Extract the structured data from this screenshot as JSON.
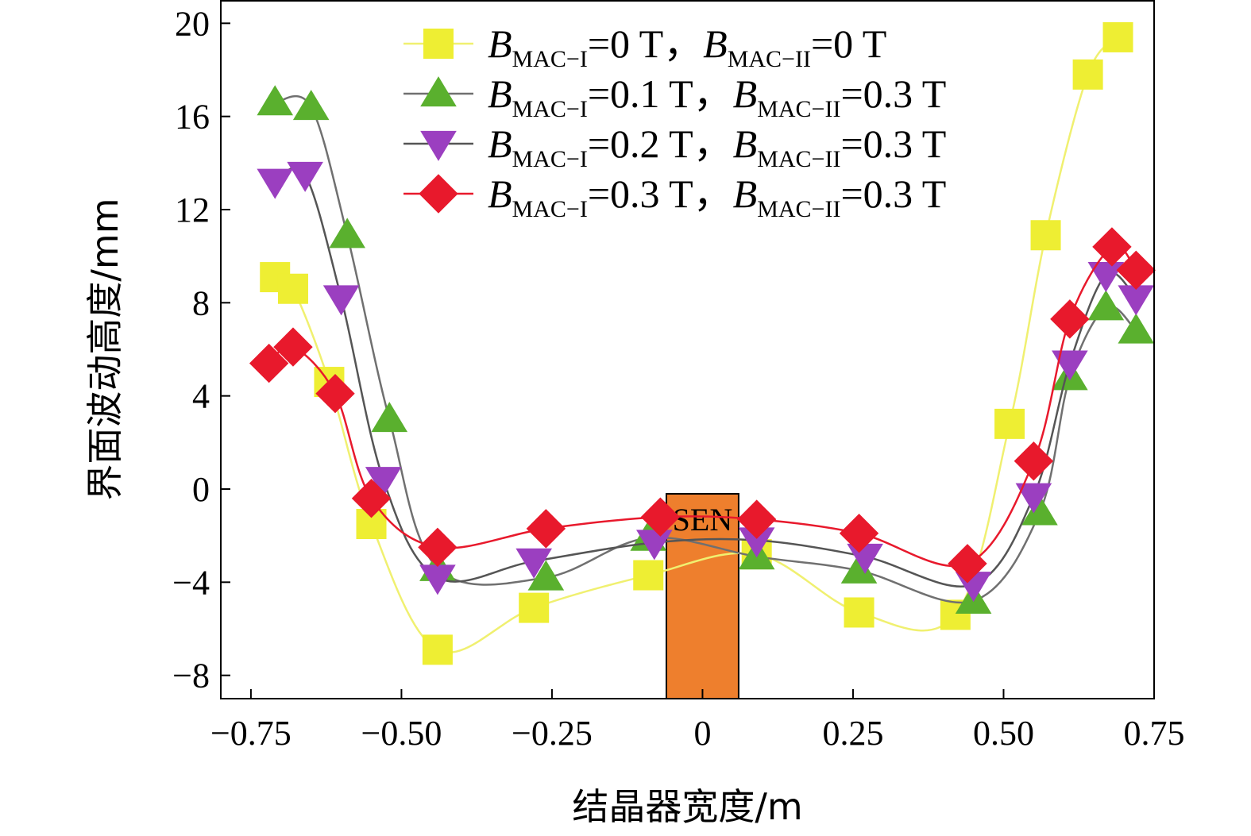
{
  "chart_data": {
    "type": "line",
    "xlabel": "结晶器宽度/m",
    "ylabel": "界面波动高度/mm",
    "xlim": [
      -0.8,
      0.75
    ],
    "ylim": [
      -9,
      21
    ],
    "xticks": [
      -0.75,
      -0.5,
      -0.25,
      0,
      0.25,
      0.5,
      0.75
    ],
    "xtick_labels": [
      "−0.75",
      "−0.50",
      "−0.25",
      "0",
      "0.25",
      "0.50",
      "0.75"
    ],
    "yticks": [
      -8,
      -4,
      0,
      4,
      8,
      12,
      16,
      20
    ],
    "ytick_labels": [
      "−8",
      "−4",
      "0",
      "4",
      "8",
      "12",
      "16",
      "20"
    ],
    "grid": false,
    "legend_position": "top-center",
    "annotation": {
      "label": "SEN",
      "x_range": [
        -0.06,
        0.06
      ],
      "color": "#ee7f2d"
    },
    "series": [
      {
        "name": "B_MAC-I=0 T, B_MAC-II=0 T",
        "legend": {
          "b1": "B",
          "s1": "MAC−I",
          "v1": "=0 T，",
          "b2": "B",
          "s2": "MAC−II",
          "v2": "=0 T"
        },
        "marker": "square",
        "color": "#eeee33",
        "line_color": "#f0f070",
        "points": [
          [
            -0.71,
            9.1
          ],
          [
            -0.68,
            8.6
          ],
          [
            -0.62,
            4.6
          ],
          [
            -0.55,
            -1.5
          ],
          [
            -0.44,
            -6.9
          ],
          [
            -0.28,
            -5.1
          ],
          [
            -0.09,
            -3.7
          ],
          [
            0.09,
            -2.8
          ],
          [
            0.26,
            -5.3
          ],
          [
            0.42,
            -5.4
          ],
          [
            0.51,
            2.8
          ],
          [
            0.57,
            10.9
          ],
          [
            0.64,
            17.8
          ],
          [
            0.69,
            19.4
          ]
        ]
      },
      {
        "name": "B_MAC-I=0.1 T, B_MAC-II=0.3 T",
        "legend": {
          "b1": "B",
          "s1": "MAC−I",
          "v1": "=0.1 T，",
          "b2": "B",
          "s2": "MAC−II",
          "v2": "=0.3 T"
        },
        "marker": "triangle-up",
        "color": "#5ab02e",
        "line_color": "#707070",
        "points": [
          [
            -0.71,
            16.6
          ],
          [
            -0.65,
            16.4
          ],
          [
            -0.59,
            10.9
          ],
          [
            -0.52,
            3.0
          ],
          [
            -0.44,
            -3.4
          ],
          [
            -0.26,
            -3.8
          ],
          [
            -0.09,
            -2.1
          ],
          [
            0.09,
            -2.9
          ],
          [
            0.26,
            -3.5
          ],
          [
            0.45,
            -4.8
          ],
          [
            0.56,
            -1.0
          ],
          [
            0.61,
            4.8
          ],
          [
            0.67,
            7.8
          ],
          [
            0.72,
            6.8
          ]
        ]
      },
      {
        "name": "B_MAC-I=0.2 T, B_MAC-II=0.3 T",
        "legend": {
          "b1": "B",
          "s1": "MAC−I",
          "v1": "=0.2 T，",
          "b2": "B",
          "s2": "MAC−II",
          "v2": "=0.3 T"
        },
        "marker": "triangle-down",
        "color": "#9b3fc0",
        "line_color": "#555555",
        "points": [
          [
            -0.71,
            13.2
          ],
          [
            -0.66,
            13.5
          ],
          [
            -0.6,
            8.2
          ],
          [
            -0.53,
            0.4
          ],
          [
            -0.44,
            -3.8
          ],
          [
            -0.28,
            -3.1
          ],
          [
            -0.08,
            -2.3
          ],
          [
            0.09,
            -2.2
          ],
          [
            0.27,
            -2.9
          ],
          [
            0.45,
            -4.1
          ],
          [
            0.55,
            -0.3
          ],
          [
            0.61,
            5.4
          ],
          [
            0.67,
            9.2
          ],
          [
            0.72,
            8.2
          ]
        ]
      },
      {
        "name": "B_MAC-I=0.3 T, B_MAC-II=0.3 T",
        "legend": {
          "b1": "B",
          "s1": "MAC−I",
          "v1": "=0.3 T，",
          "b2": "B",
          "s2": "MAC−II",
          "v2": "=0.3 T"
        },
        "marker": "diamond",
        "color": "#e8192c",
        "line_color": "#e8192c",
        "points": [
          [
            -0.72,
            5.4
          ],
          [
            -0.68,
            6.1
          ],
          [
            -0.61,
            4.1
          ],
          [
            -0.55,
            -0.4
          ],
          [
            -0.44,
            -2.5
          ],
          [
            -0.26,
            -1.7
          ],
          [
            -0.07,
            -1.2
          ],
          [
            0.09,
            -1.3
          ],
          [
            0.26,
            -1.9
          ],
          [
            0.44,
            -3.2
          ],
          [
            0.55,
            1.2
          ],
          [
            0.61,
            7.3
          ],
          [
            0.68,
            10.4
          ],
          [
            0.72,
            9.4
          ]
        ]
      }
    ]
  }
}
